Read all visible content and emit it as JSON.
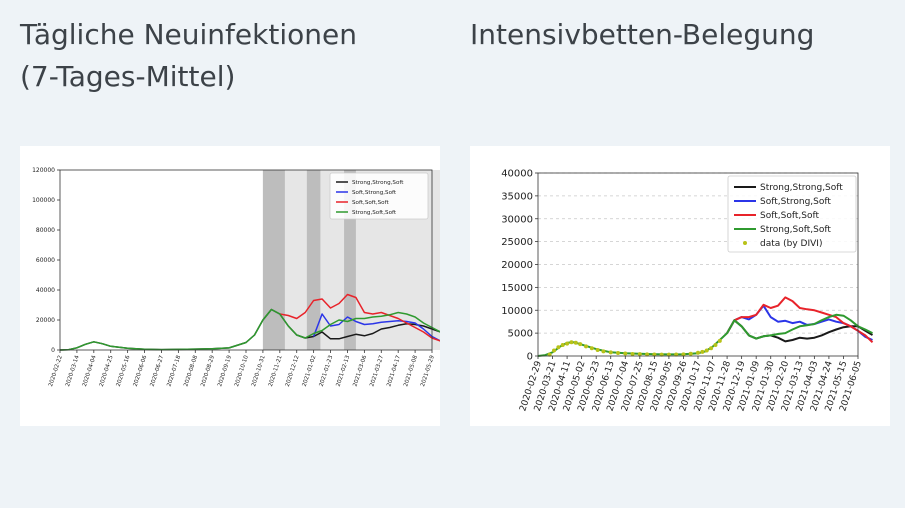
{
  "page": {
    "headings": [
      "Tägliche Neuinfektionen",
      "(7-Tages-Mittel)",
      "Intensivbetten-Belegung"
    ]
  },
  "chart_data": [
    {
      "type": "line",
      "title": "Tägliche Neuinfektionen (7-Tages-Mittel)",
      "xlabel": "",
      "ylabel": "",
      "ylim": [
        0,
        120000
      ],
      "yticks": [
        0,
        20000,
        40000,
        60000,
        80000,
        100000,
        120000
      ],
      "xticks": [
        "2020-02-22",
        "2020-03-14",
        "2020-04-04",
        "2020-04-25",
        "2020-05-16",
        "2020-06-06",
        "2020-06-27",
        "2020-07-18",
        "2020-08-08",
        "2020-08-29",
        "2020-09-19",
        "2020-10-10",
        "2020-10-31",
        "2020-11-21",
        "2020-12-12",
        "2021-01-02",
        "2021-01-23",
        "2021-02-13",
        "2021-03-06",
        "2021-03-27",
        "2021-04-17",
        "2021-05-08",
        "2021-05-29"
      ],
      "grid": false,
      "legend_position": "top-right",
      "shaded_bands": [
        {
          "start": 12,
          "end": 13.3,
          "shade": "dark"
        },
        {
          "start": 14.6,
          "end": 15.4,
          "shade": "dark"
        },
        {
          "start": 16.8,
          "end": 17.5,
          "shade": "dark"
        },
        {
          "start": 12,
          "end": 23,
          "shade": "light"
        }
      ],
      "series": [
        {
          "name": "Strong,Strong,Soft",
          "color": "#1a1a1a",
          "x": [
            0,
            0.5,
            1,
            1.5,
            2,
            2.5,
            3,
            4,
            5,
            6,
            7,
            8,
            9,
            10,
            11,
            11.5,
            12,
            12.5,
            13,
            13.5,
            14,
            14.5,
            15,
            15.5,
            16,
            16.5,
            17,
            17.5,
            18,
            18.5,
            19,
            19.5,
            20,
            20.5,
            21,
            21.5,
            22,
            22.5,
            23
          ],
          "y": [
            0,
            200,
            1500,
            3800,
            5500,
            4200,
            2500,
            1200,
            500,
            300,
            400,
            600,
            900,
            1400,
            5000,
            10000,
            20000,
            27000,
            24000,
            16000,
            10000,
            8000,
            9000,
            12000,
            7500,
            7500,
            9000,
            10500,
            9500,
            11000,
            14000,
            15000,
            16500,
            17500,
            17000,
            16000,
            14000,
            12000,
            10000
          ]
        },
        {
          "name": "Soft,Strong,Soft",
          "color": "#2b35e8",
          "x": [
            15,
            15.5,
            16,
            16.5,
            17,
            17.5,
            18,
            18.5,
            19,
            19.5,
            20,
            20.5,
            21,
            21.5,
            22,
            22.5,
            23
          ],
          "y": [
            9000,
            24000,
            16000,
            17000,
            22000,
            19000,
            17000,
            17500,
            18500,
            19000,
            19500,
            19000,
            18000,
            14000,
            9000,
            6000,
            4000
          ]
        },
        {
          "name": "Soft,Soft,Soft",
          "color": "#e8232a",
          "x": [
            13,
            13.5,
            14,
            14.5,
            15,
            15.5,
            16,
            16.5,
            17,
            17.5,
            18,
            18.5,
            19,
            19.5,
            20,
            20.5,
            21,
            21.5,
            22,
            22.5,
            23
          ],
          "y": [
            24000,
            23000,
            21000,
            25000,
            33000,
            34000,
            28000,
            31000,
            37000,
            35000,
            25000,
            24000,
            25000,
            23000,
            21000,
            18000,
            15000,
            12000,
            8000,
            6000,
            3000
          ]
        },
        {
          "name": "Strong,Soft,Soft",
          "color": "#2f9a2f",
          "x": [
            0,
            0.5,
            1,
            1.5,
            2,
            2.5,
            3,
            4,
            5,
            6,
            7,
            8,
            9,
            10,
            11,
            11.5,
            12,
            12.5,
            13,
            13.5,
            14,
            14.5,
            15,
            15.5,
            16,
            16.5,
            17,
            17.5,
            18,
            18.5,
            19,
            19.5,
            20,
            20.5,
            21,
            21.5,
            22,
            22.5,
            23
          ],
          "y": [
            0,
            200,
            1500,
            3800,
            5500,
            4200,
            2500,
            1200,
            500,
            300,
            400,
            600,
            900,
            1400,
            5000,
            10000,
            20000,
            27000,
            24000,
            16000,
            10000,
            8000,
            11000,
            13000,
            17000,
            20000,
            19000,
            21000,
            21000,
            22000,
            22500,
            23500,
            25000,
            24000,
            22000,
            18000,
            15000,
            12000,
            9000
          ]
        }
      ]
    },
    {
      "type": "line",
      "title": "Intensivbetten-Belegung",
      "xlabel": "",
      "ylabel": "",
      "ylim": [
        0,
        40000
      ],
      "yticks": [
        0,
        5000,
        10000,
        15000,
        20000,
        25000,
        30000,
        35000,
        40000
      ],
      "xticks": [
        "2020-02-29",
        "2020-03-21",
        "2020-04-11",
        "2020-05-02",
        "2020-05-23",
        "2020-06-13",
        "2020-07-04",
        "2020-07-25",
        "2020-08-15",
        "2020-09-05",
        "2020-09-26",
        "2020-10-17",
        "2020-11-07",
        "2020-11-28",
        "2020-12-19",
        "2021-01-09",
        "2021-01-30",
        "2021-02-20",
        "2021-03-13",
        "2021-04-03",
        "2021-04-24",
        "2021-05-15",
        "2021-06-05"
      ],
      "grid": "horizontal dashed",
      "legend_position": "top-right",
      "series": [
        {
          "name": "Strong,Strong,Soft",
          "color": "#1a1a1a",
          "x": [
            13,
            13.5,
            14,
            14.5,
            15,
            15.5,
            16,
            16.5,
            17,
            17.5,
            18,
            18.5,
            19,
            19.5,
            20,
            20.5,
            21,
            21.5,
            22,
            22.5,
            23
          ],
          "y": [
            5000,
            7800,
            6500,
            4500,
            3800,
            4300,
            4500,
            4000,
            3200,
            3500,
            4000,
            3800,
            4000,
            4500,
            5200,
            5800,
            6300,
            6500,
            6500,
            5500,
            4600
          ]
        },
        {
          "name": "Soft,Strong,Soft",
          "color": "#2b35e8",
          "x": [
            13,
            13.5,
            14,
            14.5,
            15,
            15.5,
            16,
            16.5,
            17,
            17.5,
            18,
            18.5,
            19,
            19.5,
            20,
            20.5,
            21,
            21.5,
            22,
            22.5,
            23
          ],
          "y": [
            5000,
            7800,
            8500,
            8000,
            9000,
            11000,
            8500,
            7500,
            7700,
            7200,
            7500,
            6800,
            7000,
            7500,
            8000,
            7500,
            7200,
            6500,
            5500,
            4200,
            3500
          ]
        },
        {
          "name": "Soft,Soft,Soft",
          "color": "#e8232a",
          "x": [
            13,
            13.5,
            14,
            14.5,
            15,
            15.5,
            16,
            16.5,
            17,
            17.5,
            18,
            18.5,
            19,
            19.5,
            20,
            20.5,
            21,
            21.5,
            22,
            22.5,
            23
          ],
          "y": [
            5000,
            7800,
            8500,
            8500,
            9000,
            11200,
            10500,
            11000,
            12800,
            12000,
            10500,
            10200,
            10000,
            9500,
            9000,
            8500,
            7200,
            6500,
            5500,
            4500,
            3000
          ]
        },
        {
          "name": "Strong,Soft,Soft",
          "color": "#2f9a2f",
          "x": [
            0,
            0.5,
            1,
            1.5,
            2,
            2.5,
            3,
            4,
            5,
            6,
            7,
            8,
            9,
            10,
            11,
            11.5,
            12,
            12.5,
            13,
            13.5,
            14,
            14.5,
            15,
            15.5,
            16,
            16.5,
            17,
            17.5,
            18,
            18.5,
            19,
            19.5,
            20,
            20.5,
            21,
            21.5,
            22,
            22.5,
            23
          ],
          "y": [
            0,
            200,
            800,
            2000,
            2900,
            3000,
            2500,
            1500,
            800,
            600,
            500,
            400,
            350,
            400,
            600,
            1000,
            2000,
            3500,
            5000,
            7800,
            6500,
            4500,
            3800,
            4300,
            4500,
            4800,
            5000,
            5800,
            6500,
            6700,
            7000,
            7800,
            8500,
            9000,
            8800,
            7800,
            6500,
            5800,
            5000
          ]
        },
        {
          "name": "data (by DIVI)",
          "color": "#b8c218",
          "kind": "points",
          "x": [
            0.8,
            1.1,
            1.4,
            1.7,
            2.0,
            2.3,
            2.6,
            2.9,
            3.3,
            3.7,
            4.1,
            4.5,
            5,
            5.5,
            6,
            6.5,
            7,
            7.5,
            8,
            8.5,
            9,
            9.5,
            10,
            10.5,
            11,
            11.3,
            11.6,
            11.9,
            12.2,
            12.5
          ],
          "y": [
            300,
            1200,
            1900,
            2400,
            2700,
            3000,
            2900,
            2600,
            2100,
            1700,
            1300,
            1000,
            800,
            650,
            550,
            450,
            400,
            350,
            320,
            300,
            300,
            320,
            350,
            500,
            700,
            900,
            1200,
            1700,
            2400,
            3300
          ]
        }
      ]
    }
  ]
}
